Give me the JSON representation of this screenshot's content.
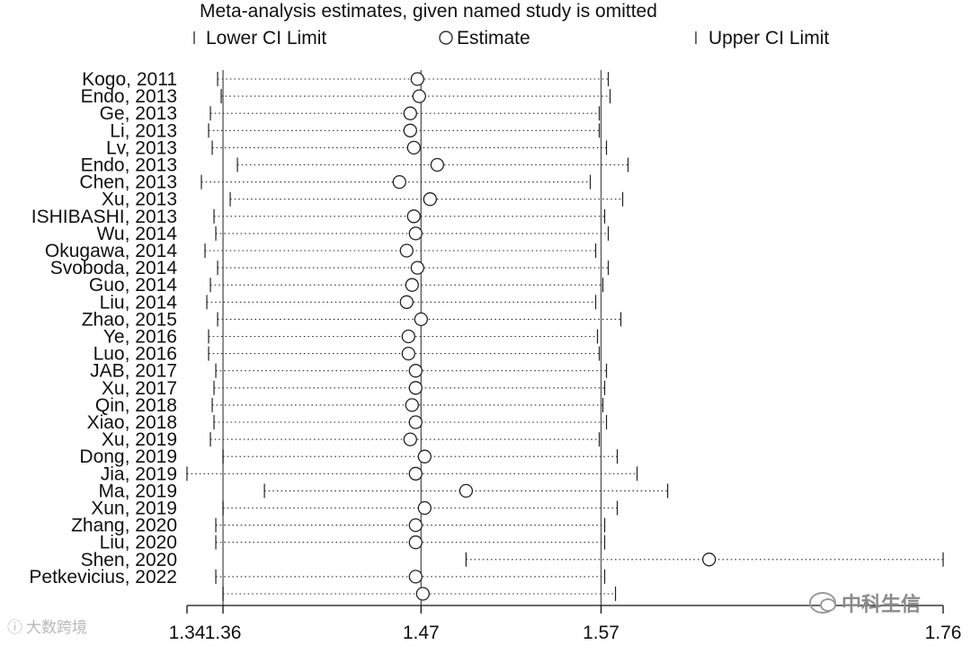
{
  "chart_data": {
    "type": "forest",
    "title": "Meta-analysis estimates, given named study is omitted",
    "legend": {
      "lower": "Lower CI Limit",
      "estimate": "Estimate",
      "upper": "Upper CI Limit",
      "placement": "top"
    },
    "xlim": [
      1.34,
      1.76
    ],
    "x_ticks": [
      "1.34",
      "1.36",
      "1.47",
      "1.57",
      "1.76"
    ],
    "reference_lines": [
      1.36,
      1.47,
      1.57
    ],
    "studies": [
      {
        "label": "Kogo, 2011",
        "lower": 1.357,
        "est": 1.468,
        "upper": 1.574
      },
      {
        "label": "Endo, 2013",
        "lower": 1.359,
        "est": 1.469,
        "upper": 1.575
      },
      {
        "label": "Ge, 2013",
        "lower": 1.353,
        "est": 1.464,
        "upper": 1.569
      },
      {
        "label": "Li, 2013",
        "lower": 1.352,
        "est": 1.464,
        "upper": 1.569
      },
      {
        "label": "Lv, 2013",
        "lower": 1.354,
        "est": 1.466,
        "upper": 1.573
      },
      {
        "label": "Endo, 2013",
        "lower": 1.368,
        "est": 1.479,
        "upper": 1.585
      },
      {
        "label": "Chen, 2013",
        "lower": 1.348,
        "est": 1.458,
        "upper": 1.564
      },
      {
        "label": "Xu, 2013",
        "lower": 1.364,
        "est": 1.475,
        "upper": 1.582
      },
      {
        "label": "ISHIBASHI, 2013",
        "lower": 1.355,
        "est": 1.466,
        "upper": 1.572
      },
      {
        "label": "Wu, 2014",
        "lower": 1.356,
        "est": 1.467,
        "upper": 1.574
      },
      {
        "label": "Okugawa, 2014",
        "lower": 1.35,
        "est": 1.462,
        "upper": 1.567
      },
      {
        "label": "Svoboda, 2014",
        "lower": 1.357,
        "est": 1.468,
        "upper": 1.574
      },
      {
        "label": "Guo, 2014",
        "lower": 1.353,
        "est": 1.465,
        "upper": 1.571
      },
      {
        "label": "Liu, 2014",
        "lower": 1.351,
        "est": 1.462,
        "upper": 1.567
      },
      {
        "label": "Zhao, 2015",
        "lower": 1.357,
        "est": 1.47,
        "upper": 1.581
      },
      {
        "label": "Ye, 2016",
        "lower": 1.352,
        "est": 1.463,
        "upper": 1.568
      },
      {
        "label": "Luo, 2016",
        "lower": 1.352,
        "est": 1.463,
        "upper": 1.569
      },
      {
        "label": "JAB, 2017",
        "lower": 1.356,
        "est": 1.467,
        "upper": 1.573
      },
      {
        "label": "Xu, 2017",
        "lower": 1.355,
        "est": 1.467,
        "upper": 1.572
      },
      {
        "label": "Qin, 2018",
        "lower": 1.354,
        "est": 1.465,
        "upper": 1.571
      },
      {
        "label": "Xiao, 2018",
        "lower": 1.355,
        "est": 1.467,
        "upper": 1.573
      },
      {
        "label": "Xu, 2019",
        "lower": 1.353,
        "est": 1.464,
        "upper": 1.569
      },
      {
        "label": "Dong, 2019",
        "lower": 1.36,
        "est": 1.472,
        "upper": 1.579
      },
      {
        "label": "Jia, 2019",
        "lower": 1.34,
        "est": 1.467,
        "upper": 1.59
      },
      {
        "label": "Ma, 2019",
        "lower": 1.383,
        "est": 1.495,
        "upper": 1.607
      },
      {
        "label": "Xun, 2019",
        "lower": 1.36,
        "est": 1.472,
        "upper": 1.579
      },
      {
        "label": "Zhang, 2020",
        "lower": 1.356,
        "est": 1.467,
        "upper": 1.572
      },
      {
        "label": "Liu, 2020",
        "lower": 1.356,
        "est": 1.467,
        "upper": 1.572
      },
      {
        "label": "Shen, 2020",
        "lower": 1.495,
        "est": 1.63,
        "upper": 1.76
      },
      {
        "label": "Petkevicius, 2022",
        "lower": 1.356,
        "est": 1.467,
        "upper": 1.572
      },
      {
        "label": "",
        "lower": 1.36,
        "est": 1.471,
        "upper": 1.578
      }
    ]
  },
  "watermarks": {
    "left": "大数跨境",
    "right": "中科生信"
  }
}
